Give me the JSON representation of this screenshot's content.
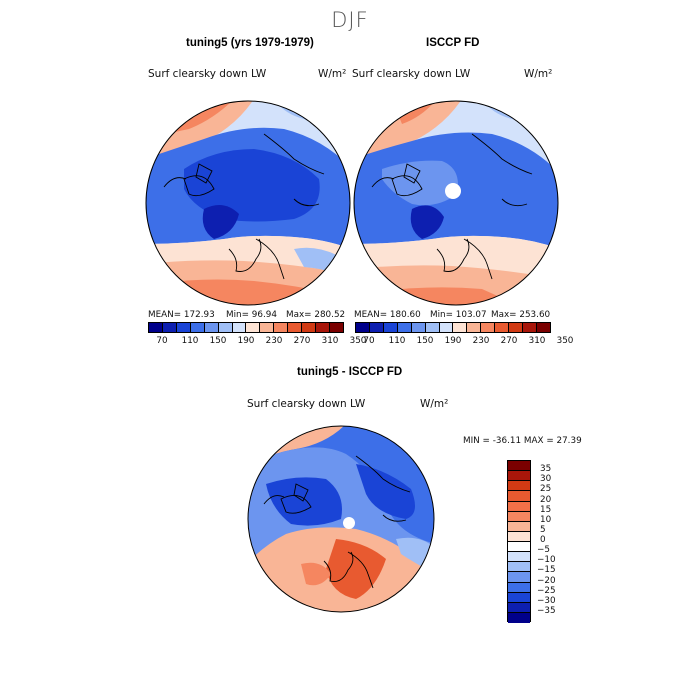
{
  "season": "DJF",
  "top_left": {
    "title": "tuning5 (yrs 1979-1979)",
    "field": "Surf clearsky down LW",
    "units": "W/m²",
    "stats": {
      "mean": "MEAN= 172.93",
      "min": "Min=  96.94",
      "max": "Max= 280.52"
    }
  },
  "top_right": {
    "title": "ISCCP FD",
    "field": "Surf clearsky down LW",
    "units": "W/m²",
    "stats": {
      "mean": "MEAN= 180.60",
      "min": "Min= 103.07",
      "max": "Max= 253.60"
    }
  },
  "bottom": {
    "title": "tuning5 - ISCCP FD",
    "field": "Surf clearsky down LW",
    "units": "W/m²",
    "minmax": "MIN = -36.11 MAX =  27.39"
  },
  "chart_data": [
    {
      "type": "heatmap",
      "projection": "polar-stereographic-north",
      "title": "tuning5 (yrs 1979-1979)",
      "variable": "Surf clearsky down LW",
      "units": "W/m2",
      "mean": 172.93,
      "min": 96.94,
      "max": 280.52,
      "colorbar_ticks": [
        "70",
        "110",
        "150",
        "190",
        "230",
        "270",
        "310",
        "350"
      ]
    },
    {
      "type": "heatmap",
      "projection": "polar-stereographic-north",
      "title": "ISCCP FD",
      "variable": "Surf clearsky down LW",
      "units": "W/m2",
      "mean": 180.6,
      "min": 103.07,
      "max": 253.6,
      "colorbar_ticks": [
        "70",
        "110",
        "150",
        "190",
        "230",
        "270",
        "310",
        "350"
      ]
    },
    {
      "type": "heatmap",
      "projection": "polar-stereographic-north",
      "title": "tuning5 - ISCCP FD",
      "variable": "Surf clearsky down LW",
      "units": "W/m2",
      "min": -36.11,
      "max": 27.39,
      "colorbar_ticks": [
        "35",
        "30",
        "25",
        "20",
        "15",
        "10",
        "5",
        "0",
        "-5",
        "-10",
        "-15",
        "-20",
        "-25",
        "-30",
        "-35"
      ]
    }
  ],
  "colors": {
    "abs_scale": [
      "#00008b",
      "#0d1fb0",
      "#1a44d6",
      "#3d6fe8",
      "#6c95ef",
      "#a0bff6",
      "#d3e2fb",
      "#fde3d4",
      "#f9b596",
      "#f58660",
      "#e85a30",
      "#d13a14",
      "#a8160a",
      "#7a0000"
    ],
    "diff_scale": [
      "#7a0000",
      "#a8160a",
      "#d13a14",
      "#e85a30",
      "#f27048",
      "#f58660",
      "#f9b596",
      "#fde3d4",
      "#ffffff",
      "#d3e2fb",
      "#a0bff6",
      "#6c95ef",
      "#3d6fe8",
      "#1a44d6",
      "#0d1fb0",
      "#00008b"
    ]
  }
}
